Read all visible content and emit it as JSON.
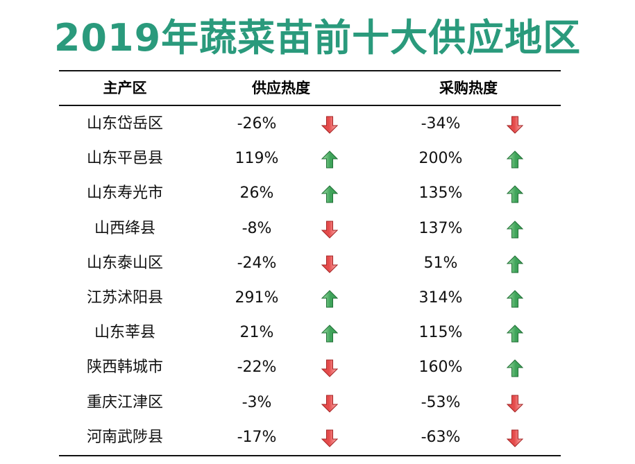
{
  "title": "2019年蔬菜苗前十大供应地区",
  "colors": {
    "title": "#2a9a7c",
    "up_fill": "#3fa35a",
    "up_light": "#9fe0a6",
    "down_fill": "#e44b4b",
    "down_light": "#ffb3b3"
  },
  "table": {
    "headers": {
      "region": "主产区",
      "supply": "供应热度",
      "purchase": "采购热度"
    },
    "rows": [
      {
        "region": "山东岱岳区",
        "supply": "-26%",
        "supply_dir": "down",
        "purchase": "-34%",
        "purchase_dir": "down"
      },
      {
        "region": "山东平邑县",
        "supply": "119%",
        "supply_dir": "up",
        "purchase": "200%",
        "purchase_dir": "up"
      },
      {
        "region": "山东寿光市",
        "supply": "26%",
        "supply_dir": "up",
        "purchase": "135%",
        "purchase_dir": "up"
      },
      {
        "region": "山西绛县",
        "supply": "-8%",
        "supply_dir": "down",
        "purchase": "137%",
        "purchase_dir": "up"
      },
      {
        "region": "山东泰山区",
        "supply": "-24%",
        "supply_dir": "down",
        "purchase": "51%",
        "purchase_dir": "up"
      },
      {
        "region": "江苏沭阳县",
        "supply": "291%",
        "supply_dir": "up",
        "purchase": "314%",
        "purchase_dir": "up"
      },
      {
        "region": "山东莘县",
        "supply": "21%",
        "supply_dir": "up",
        "purchase": "115%",
        "purchase_dir": "up"
      },
      {
        "region": "陕西韩城市",
        "supply": "-22%",
        "supply_dir": "down",
        "purchase": "160%",
        "purchase_dir": "up"
      },
      {
        "region": "重庆江津区",
        "supply": "-3%",
        "supply_dir": "down",
        "purchase": "-53%",
        "purchase_dir": "down"
      },
      {
        "region": "河南武陟县",
        "supply": "-17%",
        "supply_dir": "down",
        "purchase": "-63%",
        "purchase_dir": "down"
      }
    ]
  }
}
